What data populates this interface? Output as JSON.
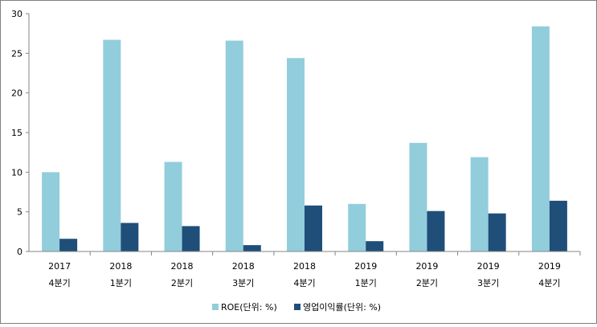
{
  "chart_data": {
    "type": "bar",
    "categories": [
      [
        "2017",
        "4분기"
      ],
      [
        "2018",
        "1분기"
      ],
      [
        "2018",
        "2분기"
      ],
      [
        "2018",
        "3분기"
      ],
      [
        "2018",
        "4분기"
      ],
      [
        "2019",
        "1분기"
      ],
      [
        "2019",
        "2분기"
      ],
      [
        "2019",
        "3분기"
      ],
      [
        "2019",
        "4분기"
      ]
    ],
    "series": [
      {
        "name": "ROE(단위: %)",
        "color": "#92cddc",
        "values": [
          10.0,
          26.7,
          11.3,
          26.6,
          24.4,
          6.0,
          13.7,
          11.9,
          28.4
        ]
      },
      {
        "name": "영업이익률(단위: %)",
        "color": "#1f4e79",
        "values": [
          1.6,
          3.6,
          3.2,
          0.8,
          5.8,
          1.3,
          5.1,
          4.8,
          6.4
        ]
      }
    ],
    "yticks": [
      "0",
      "5",
      "10",
      "15",
      "20",
      "25",
      "30"
    ],
    "ylim": [
      0,
      30
    ],
    "grid": false,
    "legend_position": "bottom"
  }
}
